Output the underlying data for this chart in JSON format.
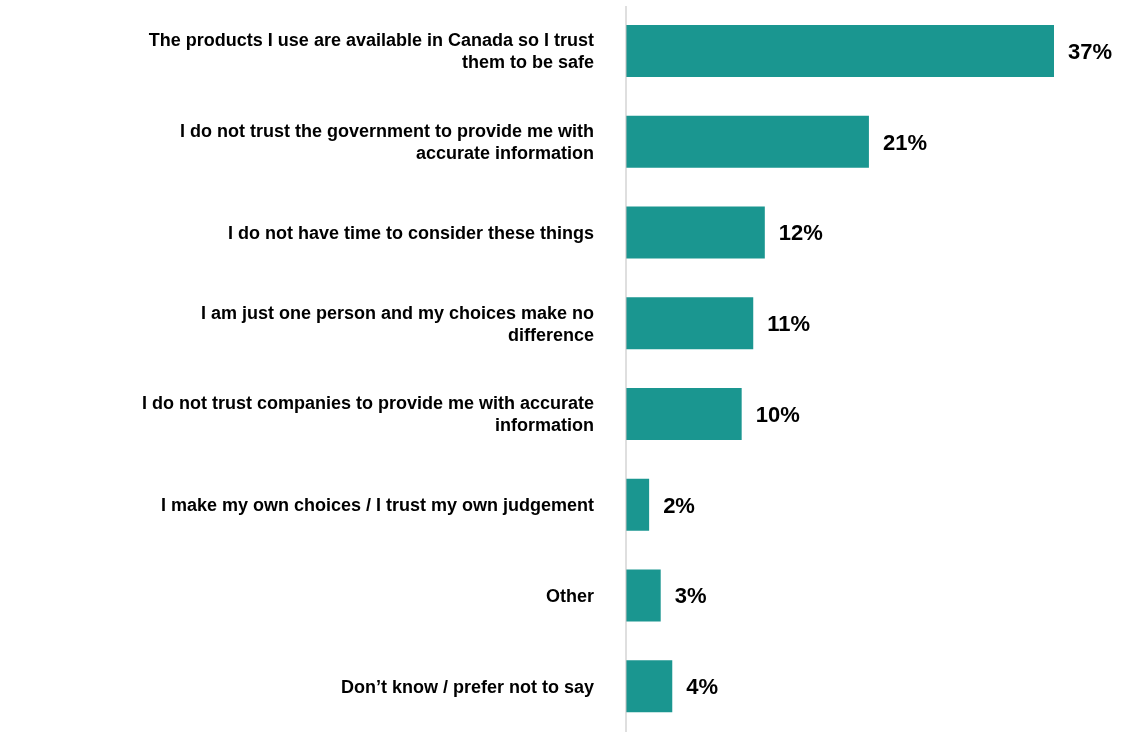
{
  "chart_data": {
    "type": "bar",
    "orientation": "horizontal",
    "categories": [
      "The products I use are available in Canada so I trust them to be safe",
      "I do not trust the government to provide me with accurate information",
      "I do not have time to consider these things",
      "I am just one person and my choices make no difference",
      "I do not trust companies to provide me with accurate information",
      "I make my own choices / I trust my own judgement",
      "Other",
      "Don’t know / prefer not to say"
    ],
    "values": [
      37,
      21,
      12,
      11,
      10,
      2,
      3,
      4
    ],
    "value_labels": [
      "37%",
      "21%",
      "12%",
      "11%",
      "10%",
      "2%",
      "3%",
      "4%"
    ],
    "color": "#1a9690"
  }
}
